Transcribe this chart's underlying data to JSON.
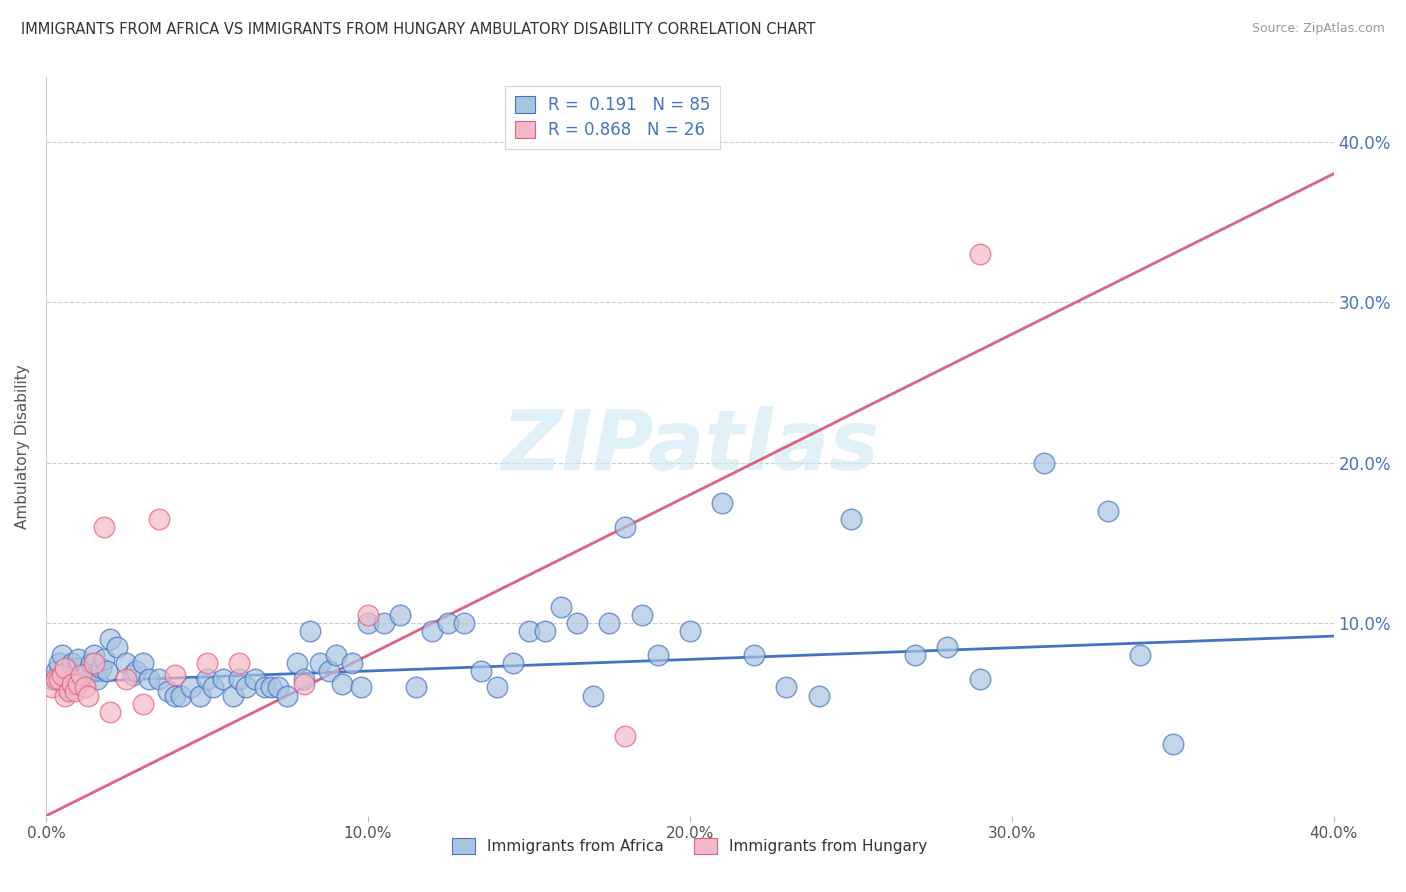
{
  "title": "IMMIGRANTS FROM AFRICA VS IMMIGRANTS FROM HUNGARY AMBULATORY DISABILITY CORRELATION CHART",
  "source": "Source: ZipAtlas.com",
  "ylabel": "Ambulatory Disability",
  "xlim": [
    0.0,
    0.4
  ],
  "ylim": [
    -0.02,
    0.44
  ],
  "plot_ylim": [
    -0.02,
    0.44
  ],
  "xtick_vals": [
    0.0,
    0.1,
    0.2,
    0.3,
    0.4
  ],
  "xtick_labels": [
    "0.0%",
    "10.0%",
    "20.0%",
    "30.0%",
    "40.0%"
  ],
  "ytick_vals": [
    0.1,
    0.2,
    0.3,
    0.4
  ],
  "ytick_labels": [
    "10.0%",
    "20.0%",
    "30.0%",
    "40.0%"
  ],
  "legend_africa_label": "Immigrants from Africa",
  "legend_hungary_label": "Immigrants from Hungary",
  "africa_R": "0.191",
  "africa_N": "85",
  "hungary_R": "0.868",
  "hungary_N": "26",
  "africa_color": "#a8c4e0",
  "africa_line_color": "#4472c4",
  "hungary_color": "#f4b8c8",
  "hungary_line_color": "#e06080",
  "watermark": "ZIPatlas",
  "africa_line_y0": 0.063,
  "africa_line_y1": 0.092,
  "hungary_line_y0": -0.02,
  "hungary_line_y1": 0.38,
  "africa_scatter_x": [
    0.002,
    0.003,
    0.004,
    0.005,
    0.006,
    0.007,
    0.008,
    0.008,
    0.009,
    0.01,
    0.01,
    0.011,
    0.012,
    0.013,
    0.014,
    0.015,
    0.016,
    0.017,
    0.018,
    0.019,
    0.02,
    0.022,
    0.025,
    0.027,
    0.028,
    0.03,
    0.032,
    0.035,
    0.038,
    0.04,
    0.042,
    0.045,
    0.048,
    0.05,
    0.052,
    0.055,
    0.058,
    0.06,
    0.062,
    0.065,
    0.068,
    0.07,
    0.072,
    0.075,
    0.078,
    0.08,
    0.082,
    0.085,
    0.088,
    0.09,
    0.092,
    0.095,
    0.098,
    0.1,
    0.105,
    0.11,
    0.115,
    0.12,
    0.125,
    0.13,
    0.135,
    0.14,
    0.145,
    0.15,
    0.155,
    0.16,
    0.165,
    0.17,
    0.175,
    0.18,
    0.185,
    0.19,
    0.2,
    0.21,
    0.22,
    0.23,
    0.24,
    0.25,
    0.27,
    0.28,
    0.29,
    0.31,
    0.33,
    0.34,
    0.35
  ],
  "africa_scatter_y": [
    0.065,
    0.07,
    0.075,
    0.08,
    0.06,
    0.065,
    0.07,
    0.075,
    0.068,
    0.072,
    0.078,
    0.065,
    0.068,
    0.07,
    0.075,
    0.08,
    0.065,
    0.072,
    0.078,
    0.07,
    0.09,
    0.085,
    0.075,
    0.068,
    0.07,
    0.075,
    0.065,
    0.065,
    0.058,
    0.055,
    0.055,
    0.06,
    0.055,
    0.065,
    0.06,
    0.065,
    0.055,
    0.065,
    0.06,
    0.065,
    0.06,
    0.06,
    0.06,
    0.055,
    0.075,
    0.065,
    0.095,
    0.075,
    0.07,
    0.08,
    0.062,
    0.075,
    0.06,
    0.1,
    0.1,
    0.105,
    0.06,
    0.095,
    0.1,
    0.1,
    0.07,
    0.06,
    0.075,
    0.095,
    0.095,
    0.11,
    0.1,
    0.055,
    0.1,
    0.16,
    0.105,
    0.08,
    0.095,
    0.175,
    0.08,
    0.06,
    0.055,
    0.165,
    0.08,
    0.085,
    0.065,
    0.2,
    0.17,
    0.08,
    0.025
  ],
  "hungary_scatter_x": [
    0.002,
    0.003,
    0.004,
    0.005,
    0.006,
    0.006,
    0.007,
    0.008,
    0.009,
    0.01,
    0.011,
    0.012,
    0.013,
    0.015,
    0.018,
    0.02,
    0.025,
    0.03,
    0.035,
    0.04,
    0.05,
    0.06,
    0.08,
    0.1,
    0.29,
    0.18
  ],
  "hungary_scatter_y": [
    0.06,
    0.065,
    0.065,
    0.068,
    0.055,
    0.072,
    0.058,
    0.062,
    0.058,
    0.062,
    0.068,
    0.06,
    0.055,
    0.075,
    0.16,
    0.045,
    0.065,
    0.05,
    0.165,
    0.068,
    0.075,
    0.075,
    0.062,
    0.105,
    0.33,
    0.03
  ]
}
